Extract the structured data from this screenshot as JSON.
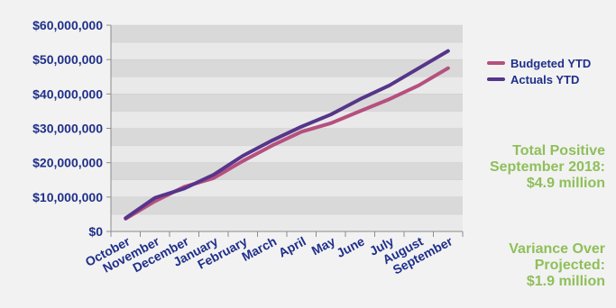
{
  "chart_data": {
    "type": "line",
    "categories": [
      "October",
      "November",
      "December",
      "January",
      "February",
      "March",
      "April",
      "May",
      "June",
      "July",
      "August",
      "September"
    ],
    "ylim": [
      0,
      60000000
    ],
    "yticks": [
      0,
      10000000,
      20000000,
      30000000,
      40000000,
      50000000,
      60000000
    ],
    "ytick_labels": [
      "$0",
      "$10,000,000",
      "$20,000,000",
      "$30,000,000",
      "$40,000,000",
      "$50,000,000",
      "$60,000,000"
    ],
    "grid": "horizontal bands",
    "legend_position": "right",
    "series": [
      {
        "name": "Budgeted YTD",
        "color": "#b5507e",
        "values": [
          3700000,
          8800000,
          13000000,
          15500000,
          20500000,
          25000000,
          29000000,
          31500000,
          35000000,
          38500000,
          42500000,
          47500000
        ]
      },
      {
        "name": "Actuals YTD",
        "color": "#56358a",
        "values": [
          3900000,
          9800000,
          12500000,
          16500000,
          22000000,
          26500000,
          30500000,
          34000000,
          38500000,
          42500000,
          47500000,
          52500000
        ]
      }
    ],
    "annotations": [
      {
        "lines": [
          "Total Positive",
          "September 2018:",
          "$4.9 million"
        ]
      },
      {
        "lines": [
          "Variance Over",
          "Projected:",
          "$1.9 million"
        ]
      }
    ]
  }
}
